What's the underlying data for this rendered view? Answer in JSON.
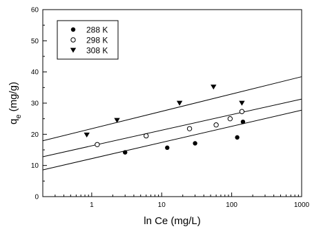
{
  "chart_data": {
    "type": "scatter",
    "title": "",
    "xlabel": "ln Ce  (mg/L)",
    "ylabel_main": "q",
    "ylabel_sub": "e",
    "ylabel_unit": " (mg/g)",
    "x_scale": "log",
    "xlim": [
      0.2,
      1000
    ],
    "ylim": [
      0,
      60
    ],
    "x_ticks": [
      1,
      10,
      100,
      1000
    ],
    "x_tick_labels": [
      "1",
      "10",
      "100",
      "1000"
    ],
    "y_ticks": [
      0,
      10,
      20,
      30,
      40,
      50,
      60
    ],
    "y_tick_labels": [
      "0",
      "10",
      "20",
      "30",
      "40",
      "50",
      "60"
    ],
    "grid": false,
    "legend_position": "top-left",
    "series": [
      {
        "name": "288 K",
        "marker": "filled-circle",
        "points": [
          [
            3,
            14.2
          ],
          [
            12,
            15.7
          ],
          [
            30,
            17.1
          ],
          [
            120,
            19
          ],
          [
            145,
            24
          ]
        ],
        "fit_line": {
          "slope_per_decade": 5.18,
          "intercept_at_1": 12.2
        }
      },
      {
        "name": "298 K",
        "marker": "open-circle",
        "points": [
          [
            1.2,
            16.7
          ],
          [
            6,
            19.5
          ],
          [
            25,
            21.8
          ],
          [
            60,
            23
          ],
          [
            95,
            25
          ],
          [
            140,
            27.3
          ]
        ],
        "fit_line": {
          "slope_per_decade": 5.0,
          "intercept_at_1": 16.3
        }
      },
      {
        "name": "308 K",
        "marker": "filled-triangle-down",
        "points": [
          [
            0.85,
            19.8
          ],
          [
            2.3,
            24.5
          ],
          [
            18,
            30
          ],
          [
            55,
            35.2
          ],
          [
            140,
            30
          ]
        ],
        "fit_line": {
          "slope_per_decade": 5.56,
          "intercept_at_1": 21.8
        }
      }
    ]
  }
}
